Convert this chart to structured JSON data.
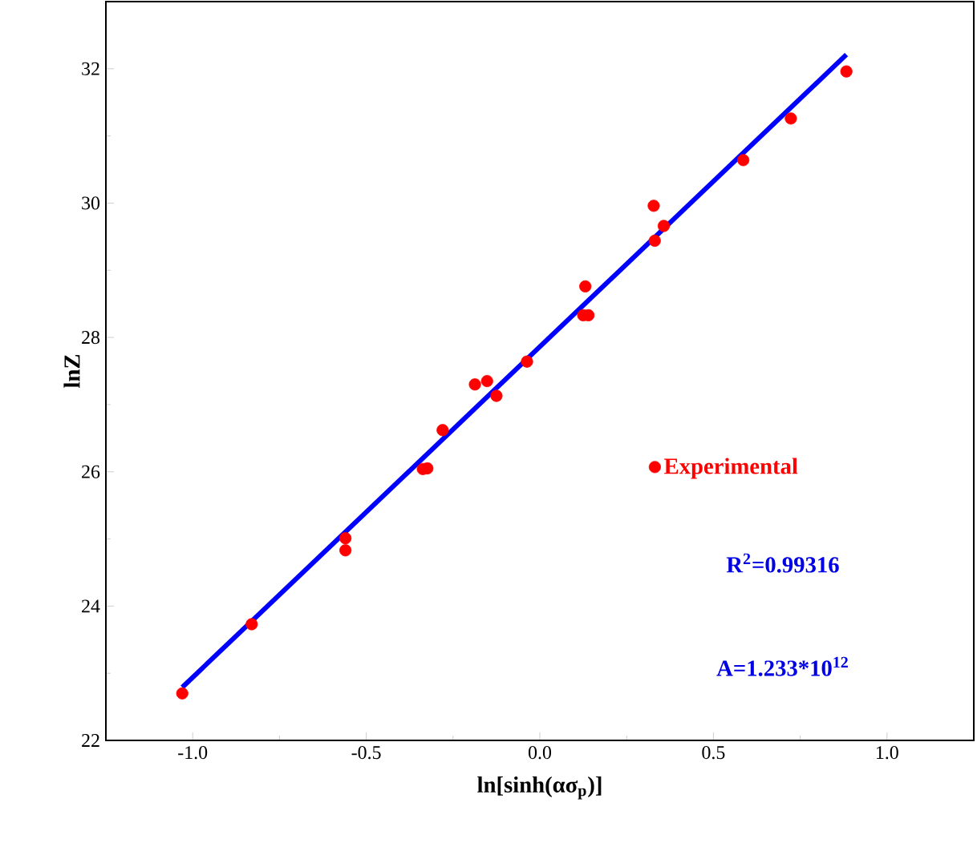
{
  "chart_data": {
    "type": "scatter",
    "xlabel": "ln[sinh(ασ$_{p}$)]",
    "ylabel": "lnZ",
    "xlim": [
      -1.25,
      1.25
    ],
    "ylim": [
      22,
      33
    ],
    "xticks": [
      {
        "value": -1,
        "label": "-1.0"
      },
      {
        "value": -0.5,
        "label": "-0.5"
      },
      {
        "value": 0,
        "label": "0.0"
      },
      {
        "value": 0.5,
        "label": "0.5"
      },
      {
        "value": 1,
        "label": "1.0"
      }
    ],
    "yticks": [
      22,
      24,
      26,
      28,
      30,
      32
    ],
    "legend": "right",
    "grid": false,
    "series": [
      {
        "name": "Experimental",
        "marker": "circle",
        "color": "#ff0000",
        "x": [
          -1.03,
          -0.83,
          -0.56,
          -0.56,
          -0.337,
          -0.324,
          -0.28,
          -0.187,
          -0.152,
          -0.125,
          -0.037,
          0.131,
          0.125,
          0.14,
          0.328,
          0.331,
          0.357,
          0.586,
          0.723,
          0.883
        ],
        "values": [
          22.7,
          23.73,
          25.01,
          24.83,
          26.04,
          26.05,
          26.62,
          27.3,
          27.35,
          27.13,
          27.64,
          28.76,
          28.33,
          28.33,
          29.96,
          29.44,
          29.66,
          30.64,
          31.26,
          31.96
        ]
      },
      {
        "type": "line",
        "color": "#0000ff",
        "x": [
          -1.03,
          0.883
        ],
        "values": [
          22.79,
          32.21
        ]
      }
    ],
    "annotations": [
      "R$^{2}$=0.99316",
      "A=1.233*10$^{12}$"
    ]
  }
}
